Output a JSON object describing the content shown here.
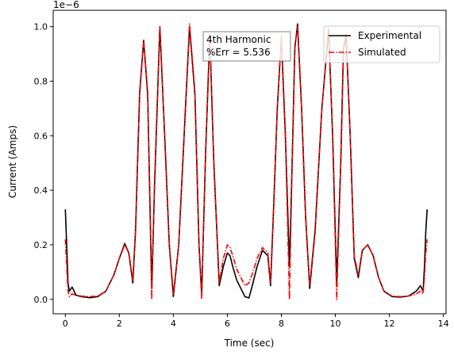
{
  "chart_data": {
    "type": "line",
    "title": "",
    "xlabel": "Time (sec)",
    "ylabel": "Current (Amps)",
    "y_scale_label": "1e−6",
    "xlim": [
      -0.45,
      14.1
    ],
    "ylim": [
      -0.053,
      1.06
    ],
    "x_ticks": [
      0,
      2,
      4,
      6,
      8,
      10,
      12,
      14
    ],
    "x_tick_labels": [
      "0",
      "2",
      "4",
      "6",
      "8",
      "10",
      "12",
      "14"
    ],
    "y_ticks": [
      0.0,
      0.2,
      0.4,
      0.6,
      0.8,
      1.0
    ],
    "y_tick_labels": [
      "0.0",
      "0.2",
      "0.4",
      "0.6",
      "0.8",
      "1.0"
    ],
    "grid": false,
    "legend_position": "top-right",
    "annotation": {
      "line1": "4th Harmonic",
      "line2": "%Err = 5.536"
    },
    "series": [
      {
        "name": "Experimental",
        "color": "#000000",
        "style": "solid",
        "x": [
          0.0,
          0.05,
          0.1,
          0.15,
          0.25,
          0.4,
          0.6,
          0.9,
          1.2,
          1.5,
          1.8,
          2.0,
          2.2,
          2.35,
          2.5,
          2.6,
          2.75,
          2.9,
          3.05,
          3.2,
          3.3,
          3.5,
          3.7,
          3.85,
          4.0,
          4.2,
          4.4,
          4.6,
          4.8,
          4.95,
          5.05,
          5.1,
          5.2,
          5.35,
          5.5,
          5.7,
          5.85,
          6.0,
          6.1,
          6.2,
          6.35,
          6.5,
          6.65,
          6.8,
          6.95,
          7.1,
          7.3,
          7.5,
          7.6,
          7.7,
          7.85,
          8.0,
          8.15,
          8.3,
          8.4,
          8.5,
          8.6,
          8.75,
          8.9,
          9.05,
          9.25,
          9.5,
          9.75,
          9.9,
          10.05,
          10.2,
          10.3,
          10.4,
          10.55,
          10.7,
          10.85,
          11.0,
          11.2,
          11.4,
          11.6,
          11.8,
          12.1,
          12.4,
          12.7,
          13.0,
          13.15,
          13.25,
          13.3,
          13.35,
          13.4
        ],
        "values": [
          0.33,
          0.2,
          0.06,
          0.03,
          0.045,
          0.015,
          0.01,
          0.006,
          0.01,
          0.03,
          0.09,
          0.15,
          0.205,
          0.17,
          0.06,
          0.25,
          0.75,
          0.95,
          0.75,
          0.04,
          0.4,
          1.0,
          0.55,
          0.2,
          0.01,
          0.2,
          0.6,
          1.0,
          0.75,
          0.2,
          0.02,
          0.2,
          0.55,
          0.97,
          0.5,
          0.05,
          0.12,
          0.17,
          0.16,
          0.12,
          0.07,
          0.04,
          0.01,
          0.005,
          0.06,
          0.12,
          0.18,
          0.16,
          0.05,
          0.3,
          0.7,
          0.96,
          0.6,
          0.12,
          0.5,
          0.92,
          1.01,
          0.7,
          0.3,
          0.04,
          0.25,
          0.7,
          0.99,
          0.6,
          0.06,
          0.5,
          0.92,
          0.97,
          0.6,
          0.15,
          0.08,
          0.18,
          0.2,
          0.16,
          0.08,
          0.03,
          0.01,
          0.008,
          0.012,
          0.03,
          0.05,
          0.03,
          0.12,
          0.25,
          0.33
        ]
      },
      {
        "name": "Simulated",
        "color": "#ff0000",
        "style": "dashdot",
        "x": [
          0.0,
          0.05,
          0.1,
          0.15,
          0.25,
          0.4,
          0.6,
          0.9,
          1.2,
          1.5,
          1.8,
          2.0,
          2.2,
          2.35,
          2.5,
          2.6,
          2.75,
          2.9,
          3.05,
          3.2,
          3.3,
          3.5,
          3.7,
          3.85,
          4.0,
          4.2,
          4.4,
          4.6,
          4.8,
          4.95,
          5.05,
          5.1,
          5.2,
          5.35,
          5.5,
          5.7,
          5.85,
          6.0,
          6.1,
          6.2,
          6.35,
          6.5,
          6.65,
          6.8,
          6.95,
          7.1,
          7.3,
          7.5,
          7.6,
          7.7,
          7.85,
          8.0,
          8.15,
          8.3,
          8.4,
          8.5,
          8.6,
          8.75,
          8.9,
          9.05,
          9.25,
          9.5,
          9.75,
          9.9,
          10.05,
          10.2,
          10.3,
          10.4,
          10.55,
          10.7,
          10.85,
          11.0,
          11.2,
          11.4,
          11.6,
          11.8,
          12.1,
          12.4,
          12.7,
          13.0,
          13.15,
          13.25,
          13.3,
          13.35,
          13.4
        ],
        "values": [
          0.22,
          0.12,
          0.03,
          0.01,
          0.02,
          0.015,
          0.012,
          0.01,
          0.012,
          0.03,
          0.09,
          0.15,
          0.2,
          0.17,
          0.07,
          0.26,
          0.76,
          0.95,
          0.76,
          0.0,
          0.42,
          1.0,
          0.56,
          0.2,
          0.02,
          0.2,
          0.61,
          1.01,
          0.76,
          0.2,
          0.0,
          0.2,
          0.56,
          0.97,
          0.5,
          0.06,
          0.15,
          0.2,
          0.19,
          0.16,
          0.11,
          0.08,
          0.05,
          0.06,
          0.1,
          0.15,
          0.19,
          0.17,
          0.06,
          0.3,
          0.7,
          0.97,
          0.6,
          0.0,
          0.5,
          0.93,
          1.0,
          0.7,
          0.3,
          0.05,
          0.26,
          0.7,
          0.99,
          0.6,
          0.0,
          0.5,
          0.92,
          0.96,
          0.6,
          0.16,
          0.09,
          0.18,
          0.2,
          0.16,
          0.08,
          0.03,
          0.012,
          0.01,
          0.012,
          0.02,
          0.03,
          0.02,
          0.08,
          0.17,
          0.22
        ]
      }
    ]
  }
}
